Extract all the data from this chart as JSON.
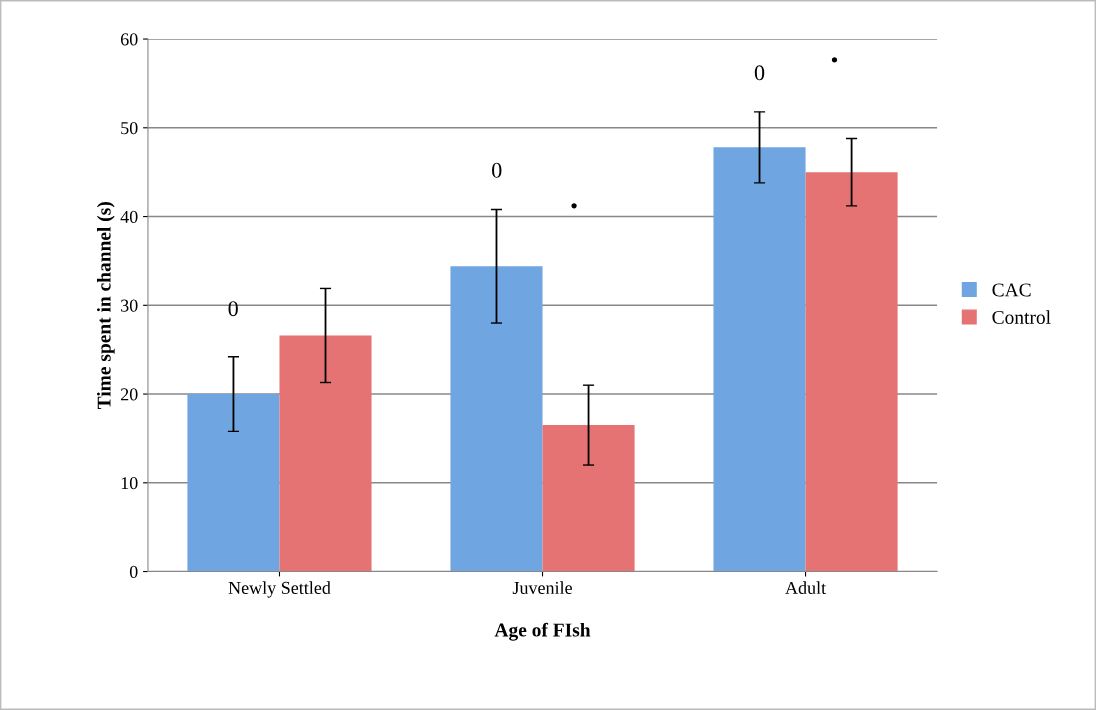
{
  "chart_data": {
    "type": "bar",
    "xlabel": "Age of FIsh",
    "ylabel": "Time spent in channel (s)",
    "categories": [
      "Newly Settled",
      "Juvenile",
      "Adult"
    ],
    "series": [
      {
        "name": "CAC",
        "color": "#6fa5e0",
        "values": [
          20,
          34.4,
          47.8
        ],
        "errors": [
          4.2,
          6.4,
          4
        ]
      },
      {
        "name": "Control",
        "color": "#e57373",
        "values": [
          26.6,
          16.5,
          45
        ],
        "errors": [
          5.3,
          4.5,
          3.8
        ]
      }
    ],
    "annotations": [
      "0",
      "0",
      "•",
      "0",
      "•"
    ],
    "ylim": [
      0,
      60
    ],
    "yticks": [
      0,
      10,
      20,
      30,
      40,
      50,
      60
    ],
    "grid": "y",
    "legend": "right"
  }
}
